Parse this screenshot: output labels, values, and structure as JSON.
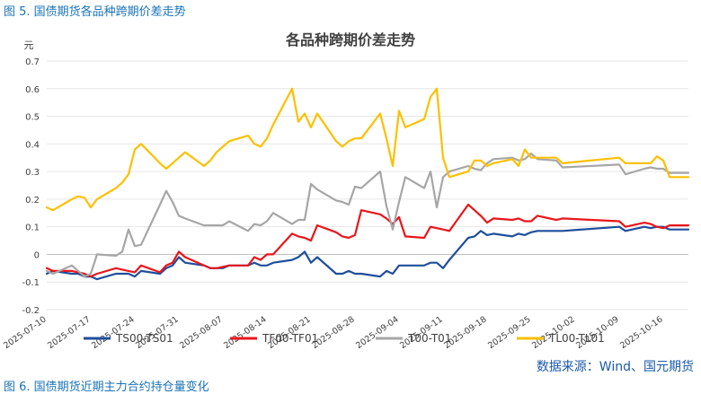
{
  "figure_caption": "图 5.  国债期货各品种跨期价差走势",
  "next_caption": "图 6.  国债期货近期主力合约持仓量变化",
  "source": "数据来源：Wind、国元期货",
  "chart_data": {
    "type": "line",
    "title": "各品种跨期价差走势",
    "ylabel": "元",
    "xlabel": "",
    "ylim": [
      -0.2,
      0.7
    ],
    "yticks": [
      -0.2,
      -0.1,
      0,
      0.1,
      0.2,
      0.3,
      0.4,
      0.5,
      0.6,
      0.7
    ],
    "x_date_range": [
      "2025-07-10",
      "2025-10-20"
    ],
    "xticks": [
      "2025-07-10",
      "2025-07-17",
      "2025-07-24",
      "2025-07-31",
      "2025-08-07",
      "2025-08-14",
      "2025-08-21",
      "2025-08-28",
      "2025-09-04",
      "2025-09-11",
      "2025-09-18",
      "2025-09-25",
      "2025-10-02",
      "2025-10-09",
      "2025-10-16"
    ],
    "xtick_labels": [
      "2025-07-10",
      "2025-07-17",
      "2025-07-24",
      "2025-07-31",
      "2025-08-07",
      "2025-08-14",
      "2025-08-21",
      "2025-08-28",
      "2025-09-04",
      "2025-09-11",
      "2025-09-18",
      "2025-09-25",
      "2025-10-02",
      "2025-10-09",
      "2025-10-16"
    ],
    "grid": "horizontal",
    "legend_position": "bottom",
    "series": [
      {
        "name": "TS00-TS01",
        "color": "#1f4e9c",
        "points": [
          [
            "2025-07-10",
            -0.07
          ],
          [
            "2025-07-11",
            -0.06
          ],
          [
            "2025-07-14",
            -0.07
          ],
          [
            "2025-07-15",
            -0.07
          ],
          [
            "2025-07-16",
            -0.08
          ],
          [
            "2025-07-17",
            -0.08
          ],
          [
            "2025-07-18",
            -0.09
          ],
          [
            "2025-07-21",
            -0.07
          ],
          [
            "2025-07-22",
            -0.07
          ],
          [
            "2025-07-23",
            -0.07
          ],
          [
            "2025-07-24",
            -0.08
          ],
          [
            "2025-07-25",
            -0.06
          ],
          [
            "2025-07-28",
            -0.07
          ],
          [
            "2025-07-29",
            -0.05
          ],
          [
            "2025-07-30",
            -0.04
          ],
          [
            "2025-07-31",
            -0.01
          ],
          [
            "2025-08-01",
            -0.03
          ],
          [
            "2025-08-04",
            -0.04
          ],
          [
            "2025-08-05",
            -0.05
          ],
          [
            "2025-08-06",
            -0.05
          ],
          [
            "2025-08-07",
            -0.05
          ],
          [
            "2025-08-08",
            -0.04
          ],
          [
            "2025-08-11",
            -0.04
          ],
          [
            "2025-08-12",
            -0.03
          ],
          [
            "2025-08-13",
            -0.04
          ],
          [
            "2025-08-14",
            -0.04
          ],
          [
            "2025-08-15",
            -0.03
          ],
          [
            "2025-08-18",
            -0.02
          ],
          [
            "2025-08-19",
            -0.01
          ],
          [
            "2025-08-20",
            0.01
          ],
          [
            "2025-08-21",
            -0.03
          ],
          [
            "2025-08-22",
            -0.01
          ],
          [
            "2025-08-25",
            -0.07
          ],
          [
            "2025-08-26",
            -0.07
          ],
          [
            "2025-08-27",
            -0.06
          ],
          [
            "2025-08-28",
            -0.07
          ],
          [
            "2025-08-29",
            -0.07
          ],
          [
            "2025-09-01",
            -0.08
          ],
          [
            "2025-09-02",
            -0.06
          ],
          [
            "2025-09-03",
            -0.07
          ],
          [
            "2025-09-04",
            -0.04
          ],
          [
            "2025-09-05",
            -0.04
          ],
          [
            "2025-09-08",
            -0.04
          ],
          [
            "2025-09-09",
            -0.03
          ],
          [
            "2025-09-10",
            -0.03
          ],
          [
            "2025-09-11",
            -0.05
          ],
          [
            "2025-09-12",
            -0.02
          ],
          [
            "2025-09-15",
            0.06
          ],
          [
            "2025-09-16",
            0.065
          ],
          [
            "2025-09-17",
            0.085
          ],
          [
            "2025-09-18",
            0.07
          ],
          [
            "2025-09-19",
            0.075
          ],
          [
            "2025-09-22",
            0.065
          ],
          [
            "2025-09-23",
            0.075
          ],
          [
            "2025-09-24",
            0.07
          ],
          [
            "2025-09-25",
            0.08
          ],
          [
            "2025-09-26",
            0.085
          ],
          [
            "2025-09-29",
            0.085
          ],
          [
            "2025-09-30",
            0.085
          ],
          [
            "2025-10-09",
            0.1
          ],
          [
            "2025-10-10",
            0.085
          ],
          [
            "2025-10-13",
            0.1
          ],
          [
            "2025-10-14",
            0.095
          ],
          [
            "2025-10-15",
            0.1
          ],
          [
            "2025-10-16",
            0.1
          ],
          [
            "2025-10-17",
            0.09
          ],
          [
            "2025-10-20",
            0.09
          ]
        ]
      },
      {
        "name": "TF00-TF01",
        "color": "#e8161b",
        "points": [
          [
            "2025-07-10",
            -0.05
          ],
          [
            "2025-07-11",
            -0.06
          ],
          [
            "2025-07-14",
            -0.06
          ],
          [
            "2025-07-15",
            -0.065
          ],
          [
            "2025-07-16",
            -0.07
          ],
          [
            "2025-07-17",
            -0.08
          ],
          [
            "2025-07-18",
            -0.07
          ],
          [
            "2025-07-21",
            -0.05
          ],
          [
            "2025-07-22",
            -0.055
          ],
          [
            "2025-07-23",
            -0.06
          ],
          [
            "2025-07-24",
            -0.065
          ],
          [
            "2025-07-25",
            -0.04
          ],
          [
            "2025-07-28",
            -0.065
          ],
          [
            "2025-07-29",
            -0.04
          ],
          [
            "2025-07-30",
            -0.03
          ],
          [
            "2025-07-31",
            0.01
          ],
          [
            "2025-08-01",
            -0.01
          ],
          [
            "2025-08-04",
            -0.04
          ],
          [
            "2025-08-05",
            -0.05
          ],
          [
            "2025-08-06",
            -0.05
          ],
          [
            "2025-08-07",
            -0.045
          ],
          [
            "2025-08-08",
            -0.04
          ],
          [
            "2025-08-11",
            -0.04
          ],
          [
            "2025-08-12",
            -0.01
          ],
          [
            "2025-08-13",
            -0.02
          ],
          [
            "2025-08-14",
            0.0
          ],
          [
            "2025-08-15",
            0.0
          ],
          [
            "2025-08-18",
            0.075
          ],
          [
            "2025-08-19",
            0.065
          ],
          [
            "2025-08-20",
            0.06
          ],
          [
            "2025-08-21",
            0.05
          ],
          [
            "2025-08-22",
            0.105
          ],
          [
            "2025-08-25",
            0.08
          ],
          [
            "2025-08-26",
            0.065
          ],
          [
            "2025-08-27",
            0.06
          ],
          [
            "2025-08-28",
            0.07
          ],
          [
            "2025-08-29",
            0.16
          ],
          [
            "2025-09-01",
            0.145
          ],
          [
            "2025-09-02",
            0.13
          ],
          [
            "2025-09-03",
            0.11
          ],
          [
            "2025-09-04",
            0.135
          ],
          [
            "2025-09-05",
            0.065
          ],
          [
            "2025-09-08",
            0.06
          ],
          [
            "2025-09-09",
            0.1
          ],
          [
            "2025-09-10",
            0.095
          ],
          [
            "2025-09-11",
            0.09
          ],
          [
            "2025-09-12",
            0.085
          ],
          [
            "2025-09-15",
            0.18
          ],
          [
            "2025-09-16",
            0.16
          ],
          [
            "2025-09-17",
            0.14
          ],
          [
            "2025-09-18",
            0.115
          ],
          [
            "2025-09-19",
            0.13
          ],
          [
            "2025-09-22",
            0.125
          ],
          [
            "2025-09-23",
            0.13
          ],
          [
            "2025-09-24",
            0.12
          ],
          [
            "2025-09-25",
            0.12
          ],
          [
            "2025-09-26",
            0.14
          ],
          [
            "2025-09-29",
            0.125
          ],
          [
            "2025-09-30",
            0.13
          ],
          [
            "2025-10-09",
            0.12
          ],
          [
            "2025-10-10",
            0.1
          ],
          [
            "2025-10-13",
            0.115
          ],
          [
            "2025-10-14",
            0.11
          ],
          [
            "2025-10-15",
            0.1
          ],
          [
            "2025-10-16",
            0.095
          ],
          [
            "2025-10-17",
            0.105
          ],
          [
            "2025-10-20",
            0.105
          ]
        ]
      },
      {
        "name": "T00-T01",
        "color": "#a6a6a6",
        "points": [
          [
            "2025-07-10",
            -0.06
          ],
          [
            "2025-07-11",
            -0.07
          ],
          [
            "2025-07-14",
            -0.04
          ],
          [
            "2025-07-15",
            -0.06
          ],
          [
            "2025-07-16",
            -0.08
          ],
          [
            "2025-07-17",
            -0.07
          ],
          [
            "2025-07-18",
            0.0
          ],
          [
            "2025-07-21",
            -0.005
          ],
          [
            "2025-07-22",
            0.01
          ],
          [
            "2025-07-23",
            0.09
          ],
          [
            "2025-07-24",
            0.03
          ],
          [
            "2025-07-25",
            0.035
          ],
          [
            "2025-07-28",
            0.18
          ],
          [
            "2025-07-29",
            0.23
          ],
          [
            "2025-07-30",
            0.19
          ],
          [
            "2025-07-31",
            0.14
          ],
          [
            "2025-08-01",
            0.13
          ],
          [
            "2025-08-04",
            0.105
          ],
          [
            "2025-08-05",
            0.105
          ],
          [
            "2025-08-06",
            0.105
          ],
          [
            "2025-08-07",
            0.105
          ],
          [
            "2025-08-08",
            0.12
          ],
          [
            "2025-08-11",
            0.085
          ],
          [
            "2025-08-12",
            0.11
          ],
          [
            "2025-08-13",
            0.105
          ],
          [
            "2025-08-14",
            0.12
          ],
          [
            "2025-08-15",
            0.15
          ],
          [
            "2025-08-18",
            0.11
          ],
          [
            "2025-08-19",
            0.125
          ],
          [
            "2025-08-20",
            0.125
          ],
          [
            "2025-08-21",
            0.255
          ],
          [
            "2025-08-22",
            0.235
          ],
          [
            "2025-08-25",
            0.195
          ],
          [
            "2025-08-26",
            0.19
          ],
          [
            "2025-08-27",
            0.18
          ],
          [
            "2025-08-28",
            0.245
          ],
          [
            "2025-08-29",
            0.24
          ],
          [
            "2025-09-01",
            0.3
          ],
          [
            "2025-09-02",
            0.175
          ],
          [
            "2025-09-03",
            0.09
          ],
          [
            "2025-09-04",
            0.19
          ],
          [
            "2025-09-05",
            0.28
          ],
          [
            "2025-09-08",
            0.24
          ],
          [
            "2025-09-09",
            0.3
          ],
          [
            "2025-09-10",
            0.17
          ],
          [
            "2025-09-11",
            0.28
          ],
          [
            "2025-09-12",
            0.3
          ],
          [
            "2025-09-15",
            0.32
          ],
          [
            "2025-09-16",
            0.31
          ],
          [
            "2025-09-17",
            0.305
          ],
          [
            "2025-09-18",
            0.33
          ],
          [
            "2025-09-19",
            0.345
          ],
          [
            "2025-09-22",
            0.35
          ],
          [
            "2025-09-23",
            0.34
          ],
          [
            "2025-09-24",
            0.345
          ],
          [
            "2025-09-25",
            0.365
          ],
          [
            "2025-09-26",
            0.345
          ],
          [
            "2025-09-29",
            0.34
          ],
          [
            "2025-09-30",
            0.315
          ],
          [
            "2025-10-09",
            0.325
          ],
          [
            "2025-10-10",
            0.29
          ],
          [
            "2025-10-13",
            0.31
          ],
          [
            "2025-10-14",
            0.315
          ],
          [
            "2025-10-15",
            0.31
          ],
          [
            "2025-10-16",
            0.31
          ],
          [
            "2025-10-17",
            0.295
          ],
          [
            "2025-10-20",
            0.295
          ]
        ]
      },
      {
        "name": "TL00-TL01",
        "color": "#fcc000",
        "points": [
          [
            "2025-07-10",
            0.17
          ],
          [
            "2025-07-11",
            0.16
          ],
          [
            "2025-07-14",
            0.2
          ],
          [
            "2025-07-15",
            0.21
          ],
          [
            "2025-07-16",
            0.205
          ],
          [
            "2025-07-17",
            0.17
          ],
          [
            "2025-07-18",
            0.2
          ],
          [
            "2025-07-21",
            0.24
          ],
          [
            "2025-07-22",
            0.26
          ],
          [
            "2025-07-23",
            0.29
          ],
          [
            "2025-07-24",
            0.38
          ],
          [
            "2025-07-25",
            0.4
          ],
          [
            "2025-07-28",
            0.33
          ],
          [
            "2025-07-29",
            0.31
          ],
          [
            "2025-07-30",
            0.33
          ],
          [
            "2025-07-31",
            0.35
          ],
          [
            "2025-08-01",
            0.37
          ],
          [
            "2025-08-04",
            0.32
          ],
          [
            "2025-08-05",
            0.34
          ],
          [
            "2025-08-06",
            0.37
          ],
          [
            "2025-08-07",
            0.39
          ],
          [
            "2025-08-08",
            0.41
          ],
          [
            "2025-08-11",
            0.43
          ],
          [
            "2025-08-12",
            0.4
          ],
          [
            "2025-08-13",
            0.39
          ],
          [
            "2025-08-14",
            0.42
          ],
          [
            "2025-08-15",
            0.47
          ],
          [
            "2025-08-18",
            0.6
          ],
          [
            "2025-08-19",
            0.48
          ],
          [
            "2025-08-20",
            0.51
          ],
          [
            "2025-08-21",
            0.46
          ],
          [
            "2025-08-22",
            0.51
          ],
          [
            "2025-08-25",
            0.41
          ],
          [
            "2025-08-26",
            0.39
          ],
          [
            "2025-08-27",
            0.41
          ],
          [
            "2025-08-28",
            0.42
          ],
          [
            "2025-08-29",
            0.42
          ],
          [
            "2025-09-01",
            0.51
          ],
          [
            "2025-09-02",
            0.42
          ],
          [
            "2025-09-03",
            0.32
          ],
          [
            "2025-09-04",
            0.52
          ],
          [
            "2025-09-05",
            0.46
          ],
          [
            "2025-09-08",
            0.49
          ],
          [
            "2025-09-09",
            0.57
          ],
          [
            "2025-09-10",
            0.6
          ],
          [
            "2025-09-11",
            0.35
          ],
          [
            "2025-09-12",
            0.28
          ],
          [
            "2025-09-15",
            0.3
          ],
          [
            "2025-09-16",
            0.34
          ],
          [
            "2025-09-17",
            0.34
          ],
          [
            "2025-09-18",
            0.32
          ],
          [
            "2025-09-19",
            0.33
          ],
          [
            "2025-09-22",
            0.345
          ],
          [
            "2025-09-23",
            0.32
          ],
          [
            "2025-09-24",
            0.38
          ],
          [
            "2025-09-25",
            0.35
          ],
          [
            "2025-09-26",
            0.35
          ],
          [
            "2025-09-29",
            0.35
          ],
          [
            "2025-09-30",
            0.33
          ],
          [
            "2025-10-09",
            0.35
          ],
          [
            "2025-10-10",
            0.33
          ],
          [
            "2025-10-13",
            0.33
          ],
          [
            "2025-10-14",
            0.33
          ],
          [
            "2025-10-15",
            0.355
          ],
          [
            "2025-10-16",
            0.34
          ],
          [
            "2025-10-17",
            0.28
          ],
          [
            "2025-10-20",
            0.28
          ]
        ]
      }
    ]
  }
}
